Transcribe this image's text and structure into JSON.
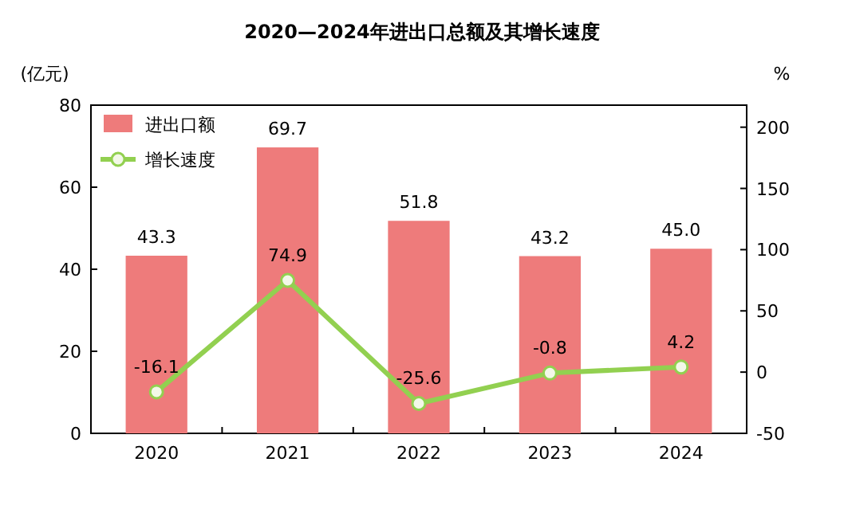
{
  "chart_data": {
    "type": "bar",
    "title": "2020—2024年进出口总额及其增长速度",
    "ylabel": "(亿元)",
    "y2label": "%",
    "categories": [
      "2020",
      "2021",
      "2022",
      "2023",
      "2024"
    ],
    "series": [
      {
        "name": "进出口额",
        "color": "#ee7b7b",
        "values": [
          43.3,
          69.7,
          51.8,
          43.2,
          45.0
        ],
        "value_labels": [
          "43.3",
          "69.7",
          "51.8",
          "43.2",
          "45.0"
        ]
      },
      {
        "name": "增长速度",
        "type": "line",
        "axis": "y2",
        "color": "#92d050",
        "values": [
          -16.1,
          74.9,
          -25.6,
          -0.8,
          4.2
        ],
        "value_labels": [
          "-16.1",
          "74.9",
          "-25.6",
          "-0.8",
          "4.2"
        ]
      }
    ],
    "ylim": [
      0,
      80
    ],
    "yticks": [
      0,
      20,
      40,
      60,
      80
    ],
    "y2lim": [
      -50,
      218
    ],
    "y2ticks": [
      -50,
      0,
      50,
      100,
      150,
      200
    ],
    "legend": "top left",
    "marker": "circle",
    "grid": false
  }
}
